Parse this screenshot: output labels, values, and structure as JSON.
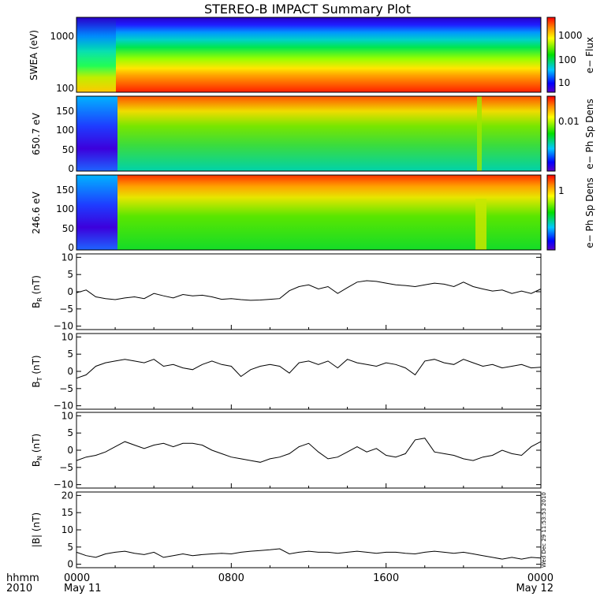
{
  "title": "STEREO-B IMPACT Summary Plot",
  "time_axis": {
    "row1_label": "hhmm",
    "row2_label": "2010",
    "ticks": [
      {
        "top": "0000",
        "bottom": "May 11"
      },
      {
        "top": "0800",
        "bottom": ""
      },
      {
        "top": "1600",
        "bottom": ""
      },
      {
        "top": "0000",
        "bottom": "May 12"
      }
    ]
  },
  "timestamp": "Wed Dec 29 11:53:53 2010",
  "chart_data": [
    {
      "type": "heatmap",
      "ylabel": "SWEA (eV)",
      "yscale": "log",
      "ylim": [
        90,
        2300
      ],
      "yticks": [
        "1000",
        "100"
      ],
      "colorbar": {
        "label": "e− Flux",
        "scale": "log",
        "ticks": [
          "1000",
          "100",
          "10"
        ]
      },
      "description_only": false
    },
    {
      "type": "heatmap",
      "ylabel": "650.7 eV",
      "ylim": [
        -5,
        180
      ],
      "yticks": [
        "150",
        "100",
        "50",
        "0"
      ],
      "colorbar": {
        "label": "e− Ph Sp Dens",
        "scale": "log",
        "ticks": [
          "0.01"
        ]
      }
    },
    {
      "type": "heatmap",
      "ylabel": "246.6 eV",
      "ylim": [
        -5,
        180
      ],
      "yticks": [
        "150",
        "100",
        "50",
        "0"
      ],
      "colorbar": {
        "label": "e− Ph Sp Dens",
        "scale": "log",
        "ticks": [
          "1"
        ]
      }
    },
    {
      "type": "line",
      "ylabel_main": "B",
      "ylabel_sub": "R",
      "ylabel_unit": " (nT)",
      "ylim": [
        -11,
        11
      ],
      "yticks": [
        "10",
        "5",
        "0",
        "−5",
        "−10"
      ],
      "x": [
        0,
        0.5,
        1,
        1.5,
        2,
        2.5,
        3,
        3.5,
        4,
        4.5,
        5,
        5.5,
        6,
        6.5,
        7,
        7.5,
        8,
        8.5,
        9,
        9.5,
        10,
        10.5,
        11,
        11.5,
        12,
        12.5,
        13,
        13.5,
        14,
        14.5,
        15,
        15.5,
        16,
        16.5,
        17,
        17.5,
        18,
        18.5,
        19,
        19.5,
        20,
        20.5,
        21,
        21.5,
        22,
        22.5,
        23,
        23.5,
        24
      ],
      "y": [
        -0.3,
        0.5,
        -1.5,
        -2.0,
        -2.3,
        -1.8,
        -1.5,
        -2.0,
        -0.5,
        -1.2,
        -1.8,
        -0.8,
        -1.2,
        -1.0,
        -1.5,
        -2.2,
        -2.0,
        -2.3,
        -2.5,
        -2.4,
        -2.2,
        -2.0,
        0.3,
        1.5,
        2.0,
        0.8,
        1.5,
        -0.5,
        1.2,
        2.8,
        3.2,
        3.0,
        2.5,
        2.0,
        1.8,
        1.5,
        2.0,
        2.5,
        2.2,
        1.5,
        2.8,
        1.5,
        0.8,
        0.2,
        0.5,
        -0.5,
        0.2,
        -0.5,
        0.8
      ]
    },
    {
      "type": "line",
      "ylabel_main": "B",
      "ylabel_sub": "T",
      "ylabel_unit": " (nT)",
      "ylim": [
        -11,
        11
      ],
      "yticks": [
        "10",
        "5",
        "0",
        "−5",
        "−10"
      ],
      "x": [
        0,
        0.5,
        1,
        1.5,
        2,
        2.5,
        3,
        3.5,
        4,
        4.5,
        5,
        5.5,
        6,
        6.5,
        7,
        7.5,
        8,
        8.5,
        9,
        9.5,
        10,
        10.5,
        11,
        11.5,
        12,
        12.5,
        13,
        13.5,
        14,
        14.5,
        15,
        15.5,
        16,
        16.5,
        17,
        17.5,
        18,
        18.5,
        19,
        19.5,
        20,
        20.5,
        21,
        21.5,
        22,
        22.5,
        23,
        23.5,
        24
      ],
      "y": [
        -2.0,
        -1.0,
        1.5,
        2.5,
        3.0,
        3.5,
        3.0,
        2.5,
        3.5,
        1.5,
        2.0,
        1.0,
        0.5,
        2.0,
        3.0,
        2.0,
        1.5,
        -1.5,
        0.5,
        1.5,
        2.0,
        1.5,
        -0.5,
        2.5,
        3.0,
        2.0,
        3.0,
        1.0,
        3.5,
        2.5,
        2.0,
        1.5,
        2.5,
        2.0,
        1.0,
        -1.0,
        3.0,
        3.5,
        2.5,
        2.0,
        3.5,
        2.5,
        1.5,
        2.0,
        1.0,
        1.5,
        2.0,
        1.0,
        1.2
      ]
    },
    {
      "type": "line",
      "ylabel_main": "B",
      "ylabel_sub": "N",
      "ylabel_unit": " (nT)",
      "ylim": [
        -11,
        11
      ],
      "yticks": [
        "10",
        "5",
        "0",
        "−5",
        "−10"
      ],
      "x": [
        0,
        0.5,
        1,
        1.5,
        2,
        2.5,
        3,
        3.5,
        4,
        4.5,
        5,
        5.5,
        6,
        6.5,
        7,
        7.5,
        8,
        8.5,
        9,
        9.5,
        10,
        10.5,
        11,
        11.5,
        12,
        12.5,
        13,
        13.5,
        14,
        14.5,
        15,
        15.5,
        16,
        16.5,
        17,
        17.5,
        18,
        18.5,
        19,
        19.5,
        20,
        20.5,
        21,
        21.5,
        22,
        22.5,
        23,
        23.5,
        24
      ],
      "y": [
        -3.0,
        -2.0,
        -1.5,
        -0.5,
        1.0,
        2.5,
        1.5,
        0.5,
        1.5,
        2.0,
        1.0,
        2.0,
        2.0,
        1.5,
        0.0,
        -1.0,
        -2.0,
        -2.5,
        -3.0,
        -3.5,
        -2.5,
        -2.0,
        -1.0,
        1.0,
        2.0,
        -0.5,
        -2.5,
        -2.0,
        -0.5,
        1.0,
        -0.5,
        0.5,
        -1.5,
        -2.0,
        -1.0,
        3.0,
        3.5,
        -0.5,
        -1.0,
        -1.5,
        -2.5,
        -3.0,
        -2.0,
        -1.5,
        0.0,
        -1.0,
        -1.5,
        1.0,
        2.5
      ]
    },
    {
      "type": "line",
      "ylabel": "|B| (nT)",
      "ylim": [
        -1,
        21
      ],
      "yticks": [
        "20",
        "15",
        "10",
        "5",
        "0"
      ],
      "x": [
        0,
        0.5,
        1,
        1.5,
        2,
        2.5,
        3,
        3.5,
        4,
        4.5,
        5,
        5.5,
        6,
        6.5,
        7,
        7.5,
        8,
        8.5,
        9,
        9.5,
        10,
        10.5,
        11,
        11.5,
        12,
        12.5,
        13,
        13.5,
        14,
        14.5,
        15,
        15.5,
        16,
        16.5,
        17,
        17.5,
        18,
        18.5,
        19,
        19.5,
        20,
        20.5,
        21,
        21.5,
        22,
        22.5,
        23,
        23.5,
        24
      ],
      "y": [
        3.5,
        2.5,
        2.0,
        3.0,
        3.5,
        3.8,
        3.2,
        2.8,
        3.5,
        2.0,
        2.5,
        3.0,
        2.5,
        2.8,
        3.0,
        3.2,
        3.0,
        3.5,
        3.8,
        4.0,
        4.2,
        4.5,
        3.0,
        3.5,
        3.8,
        3.5,
        3.5,
        3.2,
        3.5,
        3.8,
        3.5,
        3.2,
        3.5,
        3.5,
        3.2,
        3.0,
        3.5,
        3.8,
        3.5,
        3.2,
        3.5,
        3.0,
        2.5,
        2.0,
        1.5,
        2.0,
        1.5,
        2.0,
        1.8
      ]
    }
  ]
}
